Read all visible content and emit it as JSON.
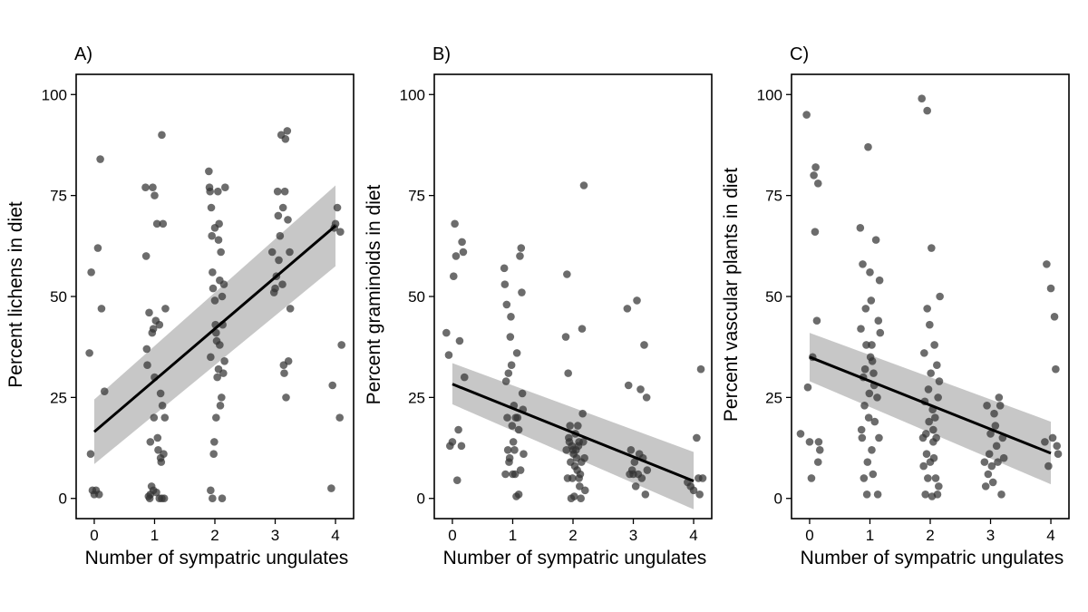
{
  "figure": {
    "background": "#ffffff"
  },
  "style": {
    "point_color": "#333333",
    "line_color": "#000000",
    "ribbon_color": "#bdbdbd"
  },
  "chart_data": [
    {
      "type": "scatter",
      "panel_label": "A)",
      "xlabel": "Number of sympatric ungulates",
      "ylabel": "Percent lichens in diet",
      "xlim": [
        -0.3,
        4.3
      ],
      "ylim": [
        -5,
        105
      ],
      "xticks": [
        0,
        1,
        2,
        3,
        4
      ],
      "yticks": [
        0,
        25,
        50,
        75,
        100
      ],
      "grid": false,
      "fit": {
        "x": [
          0,
          4
        ],
        "y": [
          16.5,
          67.5
        ],
        "ci_lower": [
          8.5,
          57.5
        ],
        "ci_upper": [
          24.5,
          77.5
        ]
      },
      "points": [
        [
          -0.08,
          36
        ],
        [
          -0.06,
          11
        ],
        [
          -0.05,
          56
        ],
        [
          -0.03,
          2
        ],
        [
          0.0,
          1
        ],
        [
          0.03,
          2
        ],
        [
          0.06,
          62
        ],
        [
          0.08,
          1
        ],
        [
          0.1,
          84
        ],
        [
          0.12,
          47
        ],
        [
          0.17,
          26.5
        ],
        [
          0.85,
          77
        ],
        [
          0.86,
          60
        ],
        [
          0.87,
          37
        ],
        [
          0.88,
          33
        ],
        [
          0.9,
          0.5
        ],
        [
          0.91,
          46
        ],
        [
          0.92,
          0
        ],
        [
          0.93,
          14
        ],
        [
          0.93,
          1
        ],
        [
          0.95,
          3
        ],
        [
          0.96,
          41
        ],
        [
          0.97,
          77
        ],
        [
          0.98,
          2
        ],
        [
          0.98,
          42
        ],
        [
          0.99,
          20
        ],
        [
          1.0,
          30
        ],
        [
          1.0,
          75
        ],
        [
          1.02,
          44
        ],
        [
          1.03,
          1.5
        ],
        [
          1.04,
          68
        ],
        [
          1.05,
          15
        ],
        [
          1.06,
          12
        ],
        [
          1.08,
          43
        ],
        [
          1.08,
          0
        ],
        [
          1.1,
          26
        ],
        [
          1.1,
          10
        ],
        [
          1.11,
          9
        ],
        [
          1.12,
          0
        ],
        [
          1.12,
          90
        ],
        [
          1.13,
          23
        ],
        [
          1.14,
          68
        ],
        [
          1.15,
          11
        ],
        [
          1.16,
          0
        ],
        [
          1.17,
          20
        ],
        [
          1.18,
          47
        ],
        [
          1.9,
          81
        ],
        [
          1.91,
          77
        ],
        [
          1.92,
          76
        ],
        [
          1.93,
          2
        ],
        [
          1.93,
          35
        ],
        [
          1.94,
          72
        ],
        [
          1.95,
          65
        ],
        [
          1.96,
          56
        ],
        [
          1.96,
          0
        ],
        [
          1.97,
          52
        ],
        [
          1.98,
          11
        ],
        [
          1.99,
          14
        ],
        [
          2.0,
          49
        ],
        [
          2.0,
          67
        ],
        [
          2.01,
          43
        ],
        [
          2.02,
          41
        ],
        [
          2.02,
          20
        ],
        [
          2.03,
          39
        ],
        [
          2.04,
          30
        ],
        [
          2.05,
          76
        ],
        [
          2.06,
          64
        ],
        [
          2.06,
          32
        ],
        [
          2.07,
          68
        ],
        [
          2.08,
          54
        ],
        [
          2.08,
          38
        ],
        [
          2.09,
          23
        ],
        [
          2.1,
          61
        ],
        [
          2.11,
          25
        ],
        [
          2.12,
          0
        ],
        [
          2.12,
          50
        ],
        [
          2.13,
          43
        ],
        [
          2.14,
          31
        ],
        [
          2.15,
          53
        ],
        [
          2.16,
          34
        ],
        [
          2.17,
          77
        ],
        [
          2.95,
          61
        ],
        [
          2.98,
          51
        ],
        [
          3.0,
          52
        ],
        [
          3.02,
          55
        ],
        [
          3.04,
          76
        ],
        [
          3.05,
          70
        ],
        [
          3.06,
          59
        ],
        [
          3.08,
          65
        ],
        [
          3.1,
          90
        ],
        [
          3.12,
          53
        ],
        [
          3.13,
          72
        ],
        [
          3.14,
          33
        ],
        [
          3.15,
          31
        ],
        [
          3.16,
          76
        ],
        [
          3.17,
          89
        ],
        [
          3.18,
          25
        ],
        [
          3.2,
          91
        ],
        [
          3.21,
          69
        ],
        [
          3.22,
          34
        ],
        [
          3.24,
          61
        ],
        [
          3.25,
          47
        ],
        [
          3.93,
          2.5
        ],
        [
          3.95,
          28
        ],
        [
          3.98,
          67
        ],
        [
          4.0,
          68
        ],
        [
          4.03,
          72
        ],
        [
          4.07,
          20
        ],
        [
          4.08,
          66
        ],
        [
          4.1,
          38
        ]
      ]
    },
    {
      "type": "scatter",
      "panel_label": "B)",
      "xlabel": "Number of sympatric ungulates",
      "ylabel": "Percent graminoids in diet",
      "xlim": [
        -0.3,
        4.3
      ],
      "ylim": [
        -5,
        105
      ],
      "xticks": [
        0,
        1,
        2,
        3,
        4
      ],
      "yticks": [
        0,
        25,
        50,
        75,
        100
      ],
      "grid": false,
      "fit": {
        "x": [
          0,
          4
        ],
        "y": [
          28.3,
          4.3
        ],
        "ci_lower": [
          23.3,
          -2.7
        ],
        "ci_upper": [
          33.5,
          11.5
        ]
      },
      "points": [
        [
          -0.1,
          41
        ],
        [
          -0.06,
          35.5
        ],
        [
          -0.04,
          13
        ],
        [
          0.0,
          14
        ],
        [
          0.02,
          55
        ],
        [
          0.04,
          68
        ],
        [
          0.06,
          60
        ],
        [
          0.08,
          4.5
        ],
        [
          0.1,
          17
        ],
        [
          0.12,
          39
        ],
        [
          0.15,
          13
        ],
        [
          0.16,
          63.5
        ],
        [
          0.18,
          61
        ],
        [
          0.2,
          30
        ],
        [
          0.86,
          57
        ],
        [
          0.87,
          53
        ],
        [
          0.88,
          6
        ],
        [
          0.89,
          29
        ],
        [
          0.9,
          48
        ],
        [
          0.91,
          20
        ],
        [
          0.92,
          12
        ],
        [
          0.93,
          31
        ],
        [
          0.94,
          9
        ],
        [
          0.95,
          10
        ],
        [
          0.96,
          40
        ],
        [
          0.97,
          45
        ],
        [
          0.98,
          33
        ],
        [
          0.99,
          18
        ],
        [
          1.0,
          6
        ],
        [
          1.01,
          14
        ],
        [
          1.02,
          23
        ],
        [
          1.03,
          12
        ],
        [
          1.04,
          6
        ],
        [
          1.05,
          20
        ],
        [
          1.06,
          0.5
        ],
        [
          1.07,
          36
        ],
        [
          1.08,
          20
        ],
        [
          1.1,
          17
        ],
        [
          1.12,
          60
        ],
        [
          1.13,
          7
        ],
        [
          1.14,
          62
        ],
        [
          1.15,
          51
        ],
        [
          1.16,
          26
        ],
        [
          1.17,
          22
        ],
        [
          1.18,
          11
        ],
        [
          1.1,
          1
        ],
        [
          1.88,
          40
        ],
        [
          1.89,
          12
        ],
        [
          1.9,
          55.5
        ],
        [
          1.91,
          5
        ],
        [
          1.92,
          31
        ],
        [
          1.93,
          15
        ],
        [
          1.94,
          14
        ],
        [
          1.95,
          18
        ],
        [
          1.96,
          9
        ],
        [
          1.97,
          0
        ],
        [
          1.98,
          13
        ],
        [
          1.99,
          5
        ],
        [
          2.0,
          12
        ],
        [
          2.01,
          11
        ],
        [
          2.02,
          0.5
        ],
        [
          2.03,
          8
        ],
        [
          2.04,
          16
        ],
        [
          2.05,
          12
        ],
        [
          2.06,
          10
        ],
        [
          2.07,
          7
        ],
        [
          2.08,
          18
        ],
        [
          2.09,
          13
        ],
        [
          2.1,
          5
        ],
        [
          2.11,
          3
        ],
        [
          2.12,
          6
        ],
        [
          2.13,
          0
        ],
        [
          2.14,
          9
        ],
        [
          2.15,
          42
        ],
        [
          2.16,
          21
        ],
        [
          2.17,
          14
        ],
        [
          2.18,
          77.5
        ],
        [
          2.19,
          10
        ],
        [
          2.2,
          2
        ],
        [
          2.1,
          14
        ],
        [
          2.9,
          47
        ],
        [
          2.92,
          28
        ],
        [
          2.94,
          6
        ],
        [
          2.96,
          12
        ],
        [
          2.98,
          7
        ],
        [
          3.0,
          6
        ],
        [
          3.02,
          9
        ],
        [
          3.04,
          3
        ],
        [
          3.06,
          49
        ],
        [
          3.08,
          6
        ],
        [
          3.1,
          11
        ],
        [
          3.12,
          27
        ],
        [
          3.14,
          5
        ],
        [
          3.16,
          10
        ],
        [
          3.18,
          38
        ],
        [
          3.2,
          1
        ],
        [
          3.22,
          25
        ],
        [
          3.23,
          7
        ],
        [
          3.9,
          4
        ],
        [
          3.95,
          3
        ],
        [
          4.0,
          2
        ],
        [
          4.05,
          15
        ],
        [
          4.08,
          5
        ],
        [
          4.1,
          1
        ],
        [
          4.12,
          32
        ],
        [
          4.15,
          5
        ]
      ]
    },
    {
      "type": "scatter",
      "panel_label": "C)",
      "xlabel": "Number of sympatric ungulates",
      "ylabel": "Percent vascular plants in diet",
      "xlim": [
        -0.3,
        4.3
      ],
      "ylim": [
        -5,
        105
      ],
      "xticks": [
        0,
        1,
        2,
        3,
        4
      ],
      "yticks": [
        0,
        25,
        50,
        75,
        100
      ],
      "grid": false,
      "fit": {
        "x": [
          0,
          4
        ],
        "y": [
          35,
          11.2
        ],
        "ci_lower": [
          29,
          3.5
        ],
        "ci_upper": [
          41,
          19
        ]
      },
      "points": [
        [
          -0.15,
          16
        ],
        [
          -0.05,
          95
        ],
        [
          -0.03,
          27.5
        ],
        [
          0.0,
          14
        ],
        [
          0.03,
          5
        ],
        [
          0.05,
          35
        ],
        [
          0.07,
          80
        ],
        [
          0.09,
          66
        ],
        [
          0.1,
          82
        ],
        [
          0.12,
          44
        ],
        [
          0.14,
          78
        ],
        [
          0.15,
          14
        ],
        [
          0.17,
          12
        ],
        [
          0.14,
          9
        ],
        [
          0.84,
          67
        ],
        [
          0.85,
          42
        ],
        [
          0.86,
          17
        ],
        [
          0.87,
          15
        ],
        [
          0.88,
          58
        ],
        [
          0.89,
          30
        ],
        [
          0.9,
          5
        ],
        [
          0.91,
          23
        ],
        [
          0.92,
          32
        ],
        [
          0.93,
          47
        ],
        [
          0.94,
          38
        ],
        [
          0.95,
          1
        ],
        [
          0.96,
          9
        ],
        [
          0.97,
          87
        ],
        [
          0.98,
          20
        ],
        [
          0.99,
          26
        ],
        [
          1.0,
          56
        ],
        [
          1.01,
          35
        ],
        [
          1.02,
          49
        ],
        [
          1.03,
          12
        ],
        [
          1.04,
          34
        ],
        [
          1.05,
          6
        ],
        [
          1.06,
          31
        ],
        [
          1.07,
          28
        ],
        [
          1.08,
          19
        ],
        [
          1.1,
          64
        ],
        [
          1.12,
          25
        ],
        [
          1.13,
          1
        ],
        [
          1.14,
          44
        ],
        [
          1.15,
          15
        ],
        [
          1.16,
          54
        ],
        [
          1.17,
          41
        ],
        [
          1.03,
          38
        ],
        [
          1.86,
          99
        ],
        [
          1.88,
          15
        ],
        [
          1.89,
          8
        ],
        [
          1.9,
          36
        ],
        [
          1.91,
          24
        ],
        [
          1.92,
          1
        ],
        [
          1.93,
          16
        ],
        [
          1.94,
          11
        ],
        [
          1.95,
          47
        ],
        [
          1.96,
          5
        ],
        [
          1.97,
          27
        ],
        [
          1.98,
          19
        ],
        [
          1.99,
          43
        ],
        [
          2.0,
          9
        ],
        [
          2.01,
          31
        ],
        [
          2.02,
          62
        ],
        [
          2.03,
          0.5
        ],
        [
          2.04,
          22
        ],
        [
          2.05,
          17
        ],
        [
          2.06,
          10
        ],
        [
          2.07,
          38
        ],
        [
          2.08,
          20
        ],
        [
          2.09,
          5
        ],
        [
          2.1,
          15
        ],
        [
          2.11,
          33
        ],
        [
          2.12,
          1
        ],
        [
          2.13,
          25
        ],
        [
          2.14,
          3
        ],
        [
          2.15,
          29
        ],
        [
          2.16,
          50
        ],
        [
          1.95,
          96
        ],
        [
          2.05,
          14
        ],
        [
          2.9,
          9
        ],
        [
          2.92,
          3
        ],
        [
          2.94,
          23
        ],
        [
          2.96,
          6
        ],
        [
          2.98,
          11
        ],
        [
          3.0,
          16
        ],
        [
          3.02,
          8
        ],
        [
          3.04,
          4
        ],
        [
          3.06,
          21
        ],
        [
          3.08,
          18
        ],
        [
          3.1,
          13
        ],
        [
          3.12,
          9
        ],
        [
          3.14,
          25
        ],
        [
          3.16,
          23
        ],
        [
          3.18,
          1
        ],
        [
          3.2,
          15
        ],
        [
          3.22,
          10
        ],
        [
          3.9,
          14
        ],
        [
          3.93,
          58
        ],
        [
          3.96,
          8
        ],
        [
          4.0,
          52
        ],
        [
          4.03,
          15
        ],
        [
          4.06,
          45
        ],
        [
          4.08,
          32
        ],
        [
          4.1,
          13
        ],
        [
          4.12,
          11
        ]
      ]
    }
  ]
}
